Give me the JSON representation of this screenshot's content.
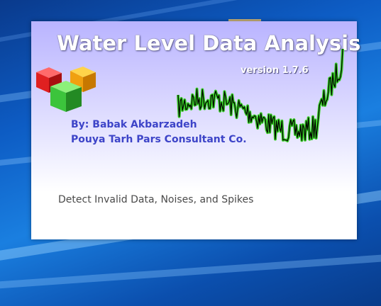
{
  "splash": {
    "title": "Water Level Data Analysis",
    "version": "version 1.7.6",
    "author_line": "By: Babak Akbarzadeh",
    "company_line": "Pouya Tarh Pars Consultant Co.",
    "tagline": "Detect Invalid Data, Noises, and Spikes",
    "logo_icon": "stacked-cubes-icon",
    "colors": {
      "title": "#ffffff",
      "author": "#3d44c8",
      "chart_line": "#000000",
      "chart_glow": "#2ecc1a",
      "cube_red": "#e02020",
      "cube_orange": "#f0a010",
      "cube_green": "#3cc43c"
    }
  },
  "desktop": {
    "background": "windows-10-blue-wallpaper"
  }
}
